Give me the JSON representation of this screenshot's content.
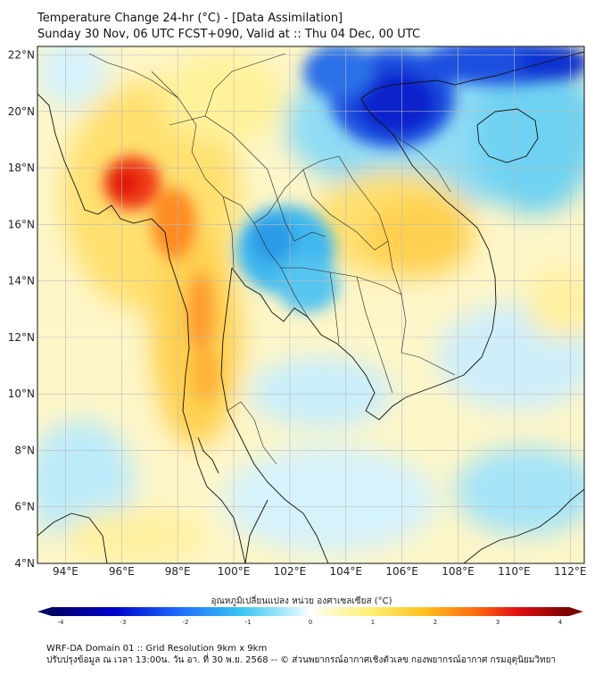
{
  "title": {
    "line1": "Temperature Change 24-hr (°C) - [Data Assimilation]",
    "line2": "Sunday 30 Nov, 06 UTC FCST+090, Valid at :: Thu 04 Dec, 00 UTC"
  },
  "map": {
    "lat_ticks": [
      "22°N",
      "20°N",
      "18°N",
      "16°N",
      "14°N",
      "12°N",
      "10°N",
      "8°N",
      "6°N",
      "4°N"
    ],
    "lon_ticks": [
      "94°E",
      "96°E",
      "98°E",
      "100°E",
      "102°E",
      "104°E",
      "106°E",
      "108°E",
      "110°E",
      "112°E"
    ],
    "lat_range": [
      4,
      22.3
    ],
    "lon_range": [
      93,
      112.5
    ],
    "colors": {
      "land_border": "#111111",
      "grid": "#bbbbbb"
    }
  },
  "colorbar": {
    "title": "อุณหภูมิเปลี่ยนแปลง หน่วย องศาเซลเซียส (°C)",
    "ticks": [
      "-4",
      "-3",
      "-2",
      "-1",
      "0",
      "1",
      "2",
      "3",
      "4"
    ],
    "range": [
      -4,
      4
    ]
  },
  "footer": {
    "line1": "WRF-DA Domain 01 :: Grid Resolution 9km x 9km",
    "line2": "ปรับปรุงข้อมูล ณ เวลา 13:00น. วัน อา. ที่ 30 พ.ย. 2568 -- © ส่วนพยากรณ์อากาศเชิงตัวเลข กองพยากรณ์อากาศ กรมอุตุนิยมวิทยา"
  }
}
